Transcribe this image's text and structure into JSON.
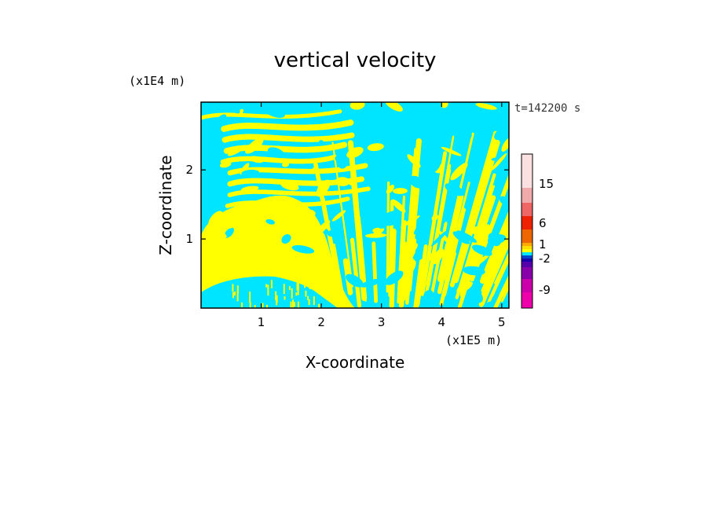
{
  "chart_data": {
    "type": "heatmap",
    "title": "vertical velocity",
    "xlabel": "X-coordinate",
    "ylabel": "Z-coordinate",
    "x_unit": "(x1E5 m)",
    "y_unit": "(x1E4 m)",
    "xlim": [
      0,
      5.12
    ],
    "ylim": [
      0,
      2.98
    ],
    "x_ticks": [
      "1",
      "2",
      "3",
      "4",
      "5"
    ],
    "y_ticks": [
      "1",
      "2"
    ],
    "time_label": "t=142200 s",
    "field_colors": {
      "positive": "#ffff00",
      "negative": "#00e5ff"
    },
    "colorbar": {
      "levels": [
        {
          "color": "#ee00aa"
        },
        {
          "color": "#cc00aa"
        },
        {
          "color": "#8800aa"
        },
        {
          "color": "#5500aa"
        },
        {
          "color": "#1a00aa"
        },
        {
          "color": "#0044cc"
        },
        {
          "color": "#00e5ff"
        },
        {
          "color": "#ffff00"
        },
        {
          "color": "#ffdd00"
        },
        {
          "color": "#ffaa00"
        },
        {
          "color": "#ee6600"
        },
        {
          "color": "#ee2200"
        },
        {
          "color": "#ee6666"
        },
        {
          "color": "#f0aaaa"
        },
        {
          "color": "#fae0e0"
        }
      ],
      "tick_labels": [
        "-9",
        "-2",
        "1",
        "6",
        "15"
      ]
    }
  }
}
